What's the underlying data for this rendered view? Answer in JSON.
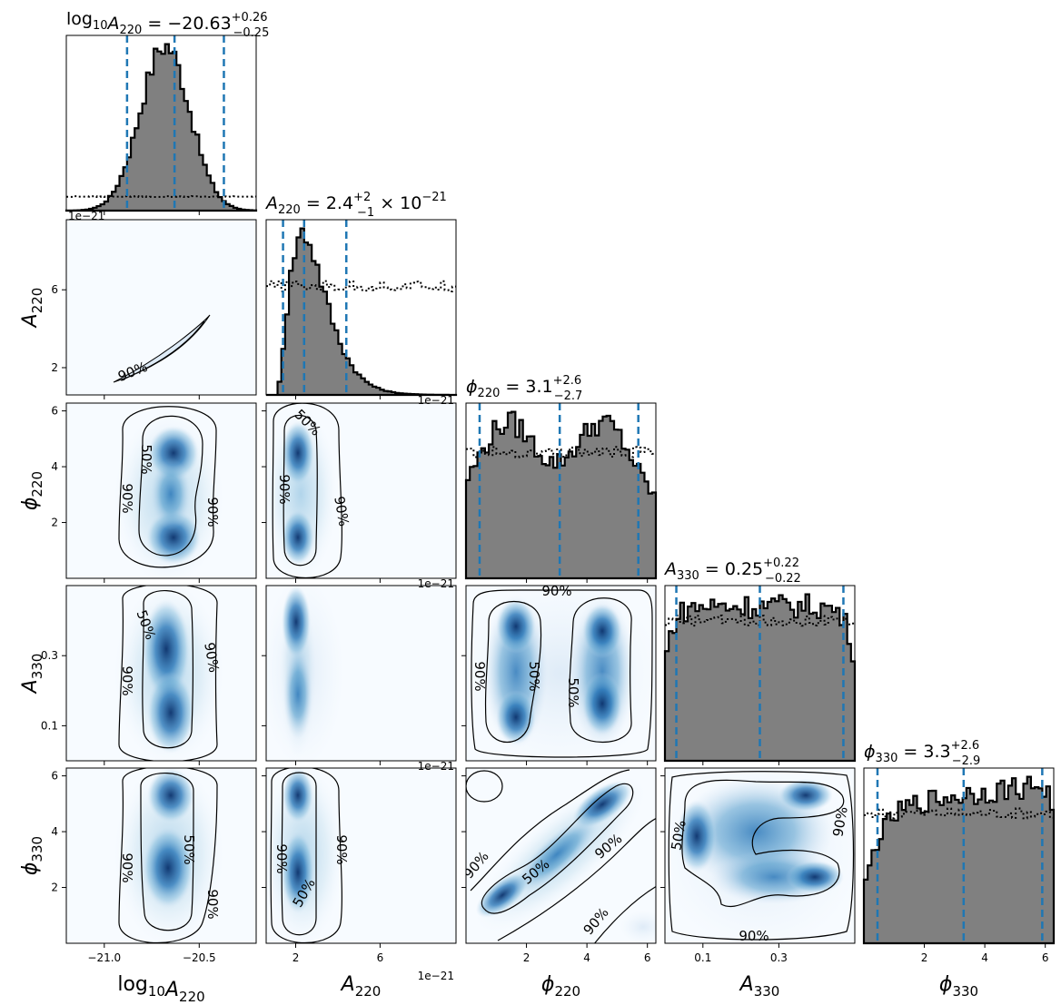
{
  "chart_data": {
    "type": "corner",
    "parameters": [
      {
        "id": "log10A220",
        "label_base": "log",
        "label_sub1": "10",
        "label_var": "A",
        "label_sub2": "220",
        "title_prefix": "log",
        "title_prefix_sub": "10",
        "title_var": "A",
        "title_sub": "220",
        "title_eq": " = −20.63",
        "title_plus": "+0.26",
        "title_minus": "−0.25",
        "title_suffix": "",
        "range": [
          -21.2,
          -20.2
        ],
        "ticks": [
          -21.0,
          -20.5
        ],
        "tick_labels": [
          "−21.0",
          "−20.5"
        ],
        "quantiles": [
          -20.88,
          -20.63,
          -20.37
        ],
        "offset": "1e−21"
      },
      {
        "id": "A220",
        "label_var": "A",
        "label_sub2": "220",
        "title_var": "A",
        "title_sub": "220",
        "title_eq": " = 2.4",
        "title_plus": "+2",
        "title_minus": "−1",
        "title_suffix": " × 10",
        "title_suffix_sup": "−21",
        "range": [
          0.6,
          9.6
        ],
        "ticks": [
          2,
          6
        ],
        "tick_labels": [
          "2",
          "6"
        ],
        "quantiles": [
          1.4,
          2.4,
          4.4
        ],
        "offset": "1e−21"
      },
      {
        "id": "phi220",
        "label_var": "ϕ",
        "label_sub2": "220",
        "title_var": "ϕ",
        "title_sub": "220",
        "title_eq": " = 3.1",
        "title_plus": "+2.6",
        "title_minus": "−2.7",
        "title_suffix": "",
        "range": [
          0,
          6.28
        ],
        "ticks": [
          2,
          4,
          6
        ],
        "tick_labels": [
          "2",
          "4",
          "6"
        ],
        "quantiles": [
          0.45,
          3.1,
          5.7
        ]
      },
      {
        "id": "A330",
        "label_var": "A",
        "label_sub2": "330",
        "title_var": "A",
        "title_sub": "330",
        "title_eq": " = 0.25",
        "title_plus": "+0.22",
        "title_minus": "−0.22",
        "title_suffix": "",
        "range": [
          0,
          0.5
        ],
        "ticks": [
          0.1,
          0.3
        ],
        "tick_labels": [
          "0.1",
          "0.3"
        ],
        "quantiles": [
          0.03,
          0.25,
          0.47
        ]
      },
      {
        "id": "phi330",
        "label_var": "ϕ",
        "label_sub2": "330",
        "title_var": "ϕ",
        "title_sub": "330",
        "title_eq": " = 3.3",
        "title_plus": "+2.6",
        "title_minus": "−2.9",
        "title_suffix": "",
        "range": [
          0,
          6.28
        ],
        "ticks": [
          2,
          4,
          6
        ],
        "tick_labels": [
          "2",
          "4",
          "6"
        ],
        "quantiles": [
          0.45,
          3.3,
          5.9
        ]
      }
    ],
    "contour_labels": [
      "50%",
      "90%"
    ],
    "colors": {
      "hist_fill": "#808080",
      "hist_edge": "#000000",
      "quantile": "#1f77b4",
      "density_hi": "#08306b",
      "density_lo": "#f7fbff"
    },
    "ytick_labels": {
      "A220": [
        "2",
        "6"
      ],
      "phi220": [
        "2",
        "4",
        "6"
      ],
      "A330": [
        "0.1",
        "0.3"
      ],
      "phi330": [
        "2",
        "4",
        "6"
      ]
    }
  }
}
